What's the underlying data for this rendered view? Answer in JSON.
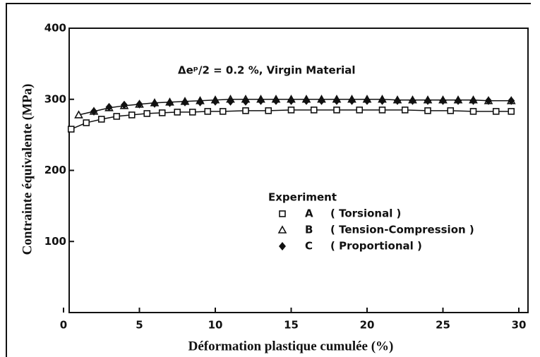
{
  "chart_data": {
    "type": "scatter",
    "annotation": "Δeᵖ/2 = 0.2 %,  Virgin Material",
    "x_label": "Déformation plastique cumulée (%)",
    "y_label": "Contrainte équivalente (MPa)",
    "legend_title": "Experiment",
    "xlim": [
      0,
      30
    ],
    "xticks": [
      0,
      5,
      10,
      15,
      20,
      25,
      30
    ],
    "ylim": [
      0,
      400
    ],
    "yticks": [
      100,
      200,
      300,
      400
    ],
    "series": [
      {
        "name": "A",
        "description": "( Torsional )",
        "marker": "square",
        "color": "#111111",
        "x": [
          0.5,
          1.5,
          2.5,
          3.5,
          4.5,
          5.5,
          6.5,
          7.5,
          8.5,
          9.5,
          10.5,
          12,
          13.5,
          15,
          16.5,
          18,
          19.5,
          21,
          22.5,
          24,
          25.5,
          27,
          28.5,
          29.5
        ],
        "values": [
          258,
          267,
          272,
          276,
          278,
          280,
          281,
          282,
          282,
          283,
          283,
          284,
          284,
          285,
          285,
          285,
          285,
          285,
          285,
          284,
          284,
          283,
          283,
          283
        ]
      },
      {
        "name": "B",
        "description": "( Tension-Compression )",
        "marker": "triangle",
        "color": "#111111",
        "x": [
          1,
          2,
          3,
          4,
          5,
          6,
          7,
          8,
          9,
          10,
          11,
          12,
          13,
          14,
          15,
          16,
          17,
          18,
          19,
          20,
          21,
          22,
          23,
          24,
          25,
          26,
          27,
          28,
          29.5
        ],
        "values": [
          278,
          283,
          288,
          291,
          293,
          295,
          296,
          297,
          298,
          299,
          300,
          300,
          300,
          300,
          300,
          300,
          300,
          300,
          300,
          300,
          300,
          299,
          299,
          299,
          299,
          299,
          299,
          298,
          298
        ]
      },
      {
        "name": "C",
        "description": "( Proportional )",
        "marker": "diamond",
        "color": "#111111",
        "x": [
          2,
          3,
          4,
          5,
          6,
          7,
          8,
          9,
          10,
          11,
          12,
          13,
          14,
          15,
          16,
          17,
          18,
          19,
          20,
          21,
          22,
          23,
          24,
          25,
          26,
          27,
          28,
          29.5
        ],
        "values": [
          283,
          289,
          292,
          293,
          294,
          295,
          296,
          296,
          297,
          297,
          297,
          298,
          298,
          298,
          298,
          298,
          298,
          298,
          298,
          298,
          298,
          298,
          298,
          298,
          298,
          298,
          298,
          298
        ]
      }
    ]
  }
}
